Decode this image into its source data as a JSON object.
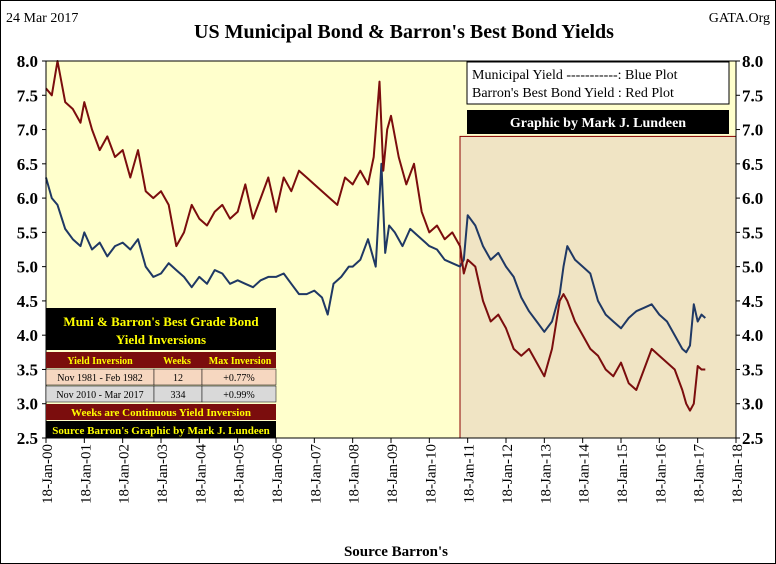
{
  "header": {
    "date": "24 Mar 2017",
    "site": "GATA.Org"
  },
  "chart_data": {
    "type": "line",
    "title": "US Municipal Bond & Barron's  Best Bond Yields",
    "xlabel": "Source Barron's",
    "ylabel": "",
    "ylim": [
      2.5,
      8.0
    ],
    "y_ticks": [
      "2.5",
      "3.0",
      "3.5",
      "4.0",
      "4.5",
      "5.0",
      "5.5",
      "6.0",
      "6.5",
      "7.0",
      "7.5",
      "8.0"
    ],
    "x_tick_labels": [
      "18-Jan-00",
      "18-Jan-01",
      "18-Jan-02",
      "18-Jan-03",
      "18-Jan-04",
      "18-Jan-05",
      "18-Jan-06",
      "18-Jan-07",
      "18-Jan-08",
      "18-Jan-09",
      "18-Jan-10",
      "18-Jan-11",
      "18-Jan-12",
      "18-Jan-13",
      "18-Jan-14",
      "18-Jan-15",
      "18-Jan-16",
      "18-Jan-17",
      "18-Jan-18"
    ],
    "xlim": [
      2000.0,
      2018.0
    ],
    "shaded_region": {
      "start": 2010.8,
      "end": 2018.0
    },
    "series": [
      {
        "name": "Municipal Yield",
        "color": "#1f3864",
        "x": [
          2000.0,
          2000.15,
          2000.3,
          2000.5,
          2000.7,
          2000.9,
          2001.0,
          2001.2,
          2001.4,
          2001.6,
          2001.8,
          2002.0,
          2002.2,
          2002.4,
          2002.6,
          2002.8,
          2003.0,
          2003.2,
          2003.4,
          2003.6,
          2003.8,
          2004.0,
          2004.2,
          2004.4,
          2004.6,
          2004.8,
          2005.0,
          2005.2,
          2005.4,
          2005.6,
          2005.8,
          2006.0,
          2006.2,
          2006.4,
          2006.6,
          2006.8,
          2007.0,
          2007.2,
          2007.35,
          2007.5,
          2007.7,
          2007.9,
          2008.0,
          2008.2,
          2008.4,
          2008.6,
          2008.75,
          2008.85,
          2008.95,
          2009.1,
          2009.3,
          2009.5,
          2009.7,
          2009.9,
          2010.0,
          2010.2,
          2010.4,
          2010.6,
          2010.8,
          2010.9,
          2011.0,
          2011.2,
          2011.4,
          2011.6,
          2011.8,
          2012.0,
          2012.2,
          2012.4,
          2012.6,
          2012.8,
          2013.0,
          2013.2,
          2013.4,
          2013.5,
          2013.6,
          2013.8,
          2014.0,
          2014.2,
          2014.4,
          2014.6,
          2014.8,
          2015.0,
          2015.2,
          2015.4,
          2015.6,
          2015.8,
          2016.0,
          2016.2,
          2016.4,
          2016.6,
          2016.7,
          2016.8,
          2016.9,
          2017.0,
          2017.1,
          2017.2
        ],
        "values": [
          6.3,
          6.0,
          5.9,
          5.55,
          5.4,
          5.3,
          5.5,
          5.25,
          5.35,
          5.15,
          5.3,
          5.35,
          5.25,
          5.4,
          5.0,
          4.85,
          4.9,
          5.05,
          4.95,
          4.85,
          4.7,
          4.85,
          4.75,
          4.95,
          4.9,
          4.75,
          4.8,
          4.75,
          4.7,
          4.8,
          4.85,
          4.85,
          4.9,
          4.75,
          4.6,
          4.6,
          4.65,
          4.55,
          4.3,
          4.75,
          4.85,
          5.0,
          5.0,
          5.1,
          5.4,
          5.0,
          6.5,
          5.2,
          5.6,
          5.5,
          5.3,
          5.55,
          5.45,
          5.35,
          5.3,
          5.25,
          5.1,
          5.05,
          5.0,
          5.1,
          5.75,
          5.6,
          5.3,
          5.1,
          5.2,
          5.0,
          4.85,
          4.55,
          4.35,
          4.2,
          4.05,
          4.2,
          4.6,
          5.0,
          5.3,
          5.1,
          5.0,
          4.9,
          4.5,
          4.3,
          4.2,
          4.1,
          4.25,
          4.35,
          4.4,
          4.45,
          4.3,
          4.2,
          4.0,
          3.8,
          3.75,
          3.85,
          4.45,
          4.2,
          4.3,
          4.25
        ]
      },
      {
        "name": "Barron's Best Bond Yield",
        "color": "#7b0d0d",
        "x": [
          2000.0,
          2000.15,
          2000.3,
          2000.5,
          2000.7,
          2000.9,
          2001.0,
          2001.2,
          2001.4,
          2001.6,
          2001.8,
          2002.0,
          2002.2,
          2002.4,
          2002.6,
          2002.8,
          2003.0,
          2003.2,
          2003.4,
          2003.6,
          2003.8,
          2004.0,
          2004.2,
          2004.4,
          2004.6,
          2004.8,
          2005.0,
          2005.2,
          2005.4,
          2005.6,
          2005.8,
          2006.0,
          2006.2,
          2006.4,
          2006.6,
          2006.8,
          2007.0,
          2007.2,
          2007.4,
          2007.6,
          2007.8,
          2008.0,
          2008.2,
          2008.4,
          2008.55,
          2008.7,
          2008.8,
          2008.9,
          2009.0,
          2009.2,
          2009.4,
          2009.6,
          2009.8,
          2010.0,
          2010.2,
          2010.4,
          2010.6,
          2010.8,
          2010.9,
          2011.0,
          2011.2,
          2011.4,
          2011.6,
          2011.8,
          2012.0,
          2012.2,
          2012.4,
          2012.6,
          2012.8,
          2013.0,
          2013.2,
          2013.4,
          2013.5,
          2013.6,
          2013.8,
          2014.0,
          2014.2,
          2014.4,
          2014.6,
          2014.8,
          2015.0,
          2015.2,
          2015.4,
          2015.6,
          2015.8,
          2016.0,
          2016.2,
          2016.4,
          2016.6,
          2016.7,
          2016.8,
          2016.9,
          2017.0,
          2017.1,
          2017.2
        ],
        "values": [
          7.6,
          7.5,
          8.0,
          7.4,
          7.3,
          7.1,
          7.4,
          7.0,
          6.7,
          6.9,
          6.6,
          6.7,
          6.3,
          6.7,
          6.1,
          6.0,
          6.1,
          5.9,
          5.3,
          5.5,
          5.9,
          5.7,
          5.6,
          5.8,
          5.9,
          5.7,
          5.8,
          6.2,
          5.7,
          6.0,
          6.3,
          5.8,
          6.3,
          6.1,
          6.4,
          6.3,
          6.2,
          6.1,
          6.0,
          5.9,
          6.3,
          6.2,
          6.4,
          6.2,
          6.6,
          7.7,
          6.4,
          7.0,
          7.2,
          6.6,
          6.2,
          6.5,
          5.8,
          5.5,
          5.6,
          5.4,
          5.5,
          5.3,
          4.9,
          5.1,
          5.0,
          4.5,
          4.2,
          4.3,
          4.1,
          3.8,
          3.7,
          3.8,
          3.6,
          3.4,
          3.8,
          4.5,
          4.6,
          4.5,
          4.2,
          4.0,
          3.8,
          3.7,
          3.5,
          3.4,
          3.6,
          3.3,
          3.2,
          3.5,
          3.8,
          3.7,
          3.6,
          3.5,
          3.2,
          3.0,
          2.9,
          3.0,
          3.55,
          3.5,
          3.5
        ]
      }
    ],
    "legend": {
      "position": "top-right",
      "lines": [
        "Municipal  Yield -----------: Blue Plot",
        "Barron's Best Bond  Yield : Red Plot"
      ],
      "credit": "Graphic by Mark J. Lundeen"
    },
    "inversion_table": {
      "title_lines": [
        "Muni & Barron's Best Grade Bond",
        "Yield Inversions"
      ],
      "columns": [
        "Yield Inversion",
        "Weeks",
        "Max Inversion"
      ],
      "rows": [
        [
          "Nov 1981 - Feb 1982",
          "12",
          "+0.77%"
        ],
        [
          "Nov 2010 - Mar 2017",
          "334",
          "+0.99%"
        ]
      ],
      "footer_lines": [
        "Weeks are Continuous Yield Inversion",
        "Source Barron's Graphic by Mark J. Lundeen"
      ]
    }
  }
}
